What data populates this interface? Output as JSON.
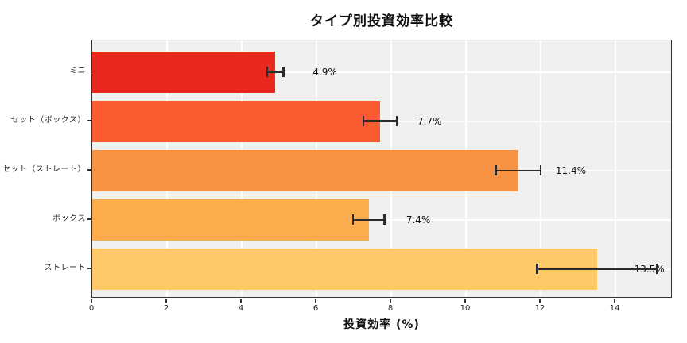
{
  "figure": {
    "background_color": "#ffffff",
    "plot_background_color": "#f0f0ee",
    "grid_color": "#ffffff",
    "spine_color": "#333333",
    "errorbar_color": "#2a2a2a",
    "text_color": "#111111"
  },
  "chart_data": {
    "type": "bar",
    "orientation": "horizontal",
    "title": "タイプ別投資効率比較",
    "xlabel": "投資効率 (%)",
    "ylabel": "",
    "categories": [
      "ミニ",
      "セット（ボックス）",
      "セット（ストレート）",
      "ボックス",
      "ストレート"
    ],
    "values": [
      4.9,
      7.7,
      11.4,
      7.4,
      13.5
    ],
    "errors": [
      0.22,
      0.45,
      0.6,
      0.42,
      1.6
    ],
    "value_labels": [
      "4.9%",
      "7.7%",
      "11.4%",
      "7.4%",
      "13.5%"
    ],
    "bar_colors": [
      "#e9291d",
      "#fa5b30",
      "#f99142",
      "#fbac4d",
      "#fdc967"
    ],
    "xticks": [
      0,
      2,
      4,
      6,
      8,
      10,
      12,
      14
    ],
    "xlim": [
      0,
      15.53
    ],
    "grid": true,
    "legend": null,
    "value_label_offset_units": 1.0
  }
}
